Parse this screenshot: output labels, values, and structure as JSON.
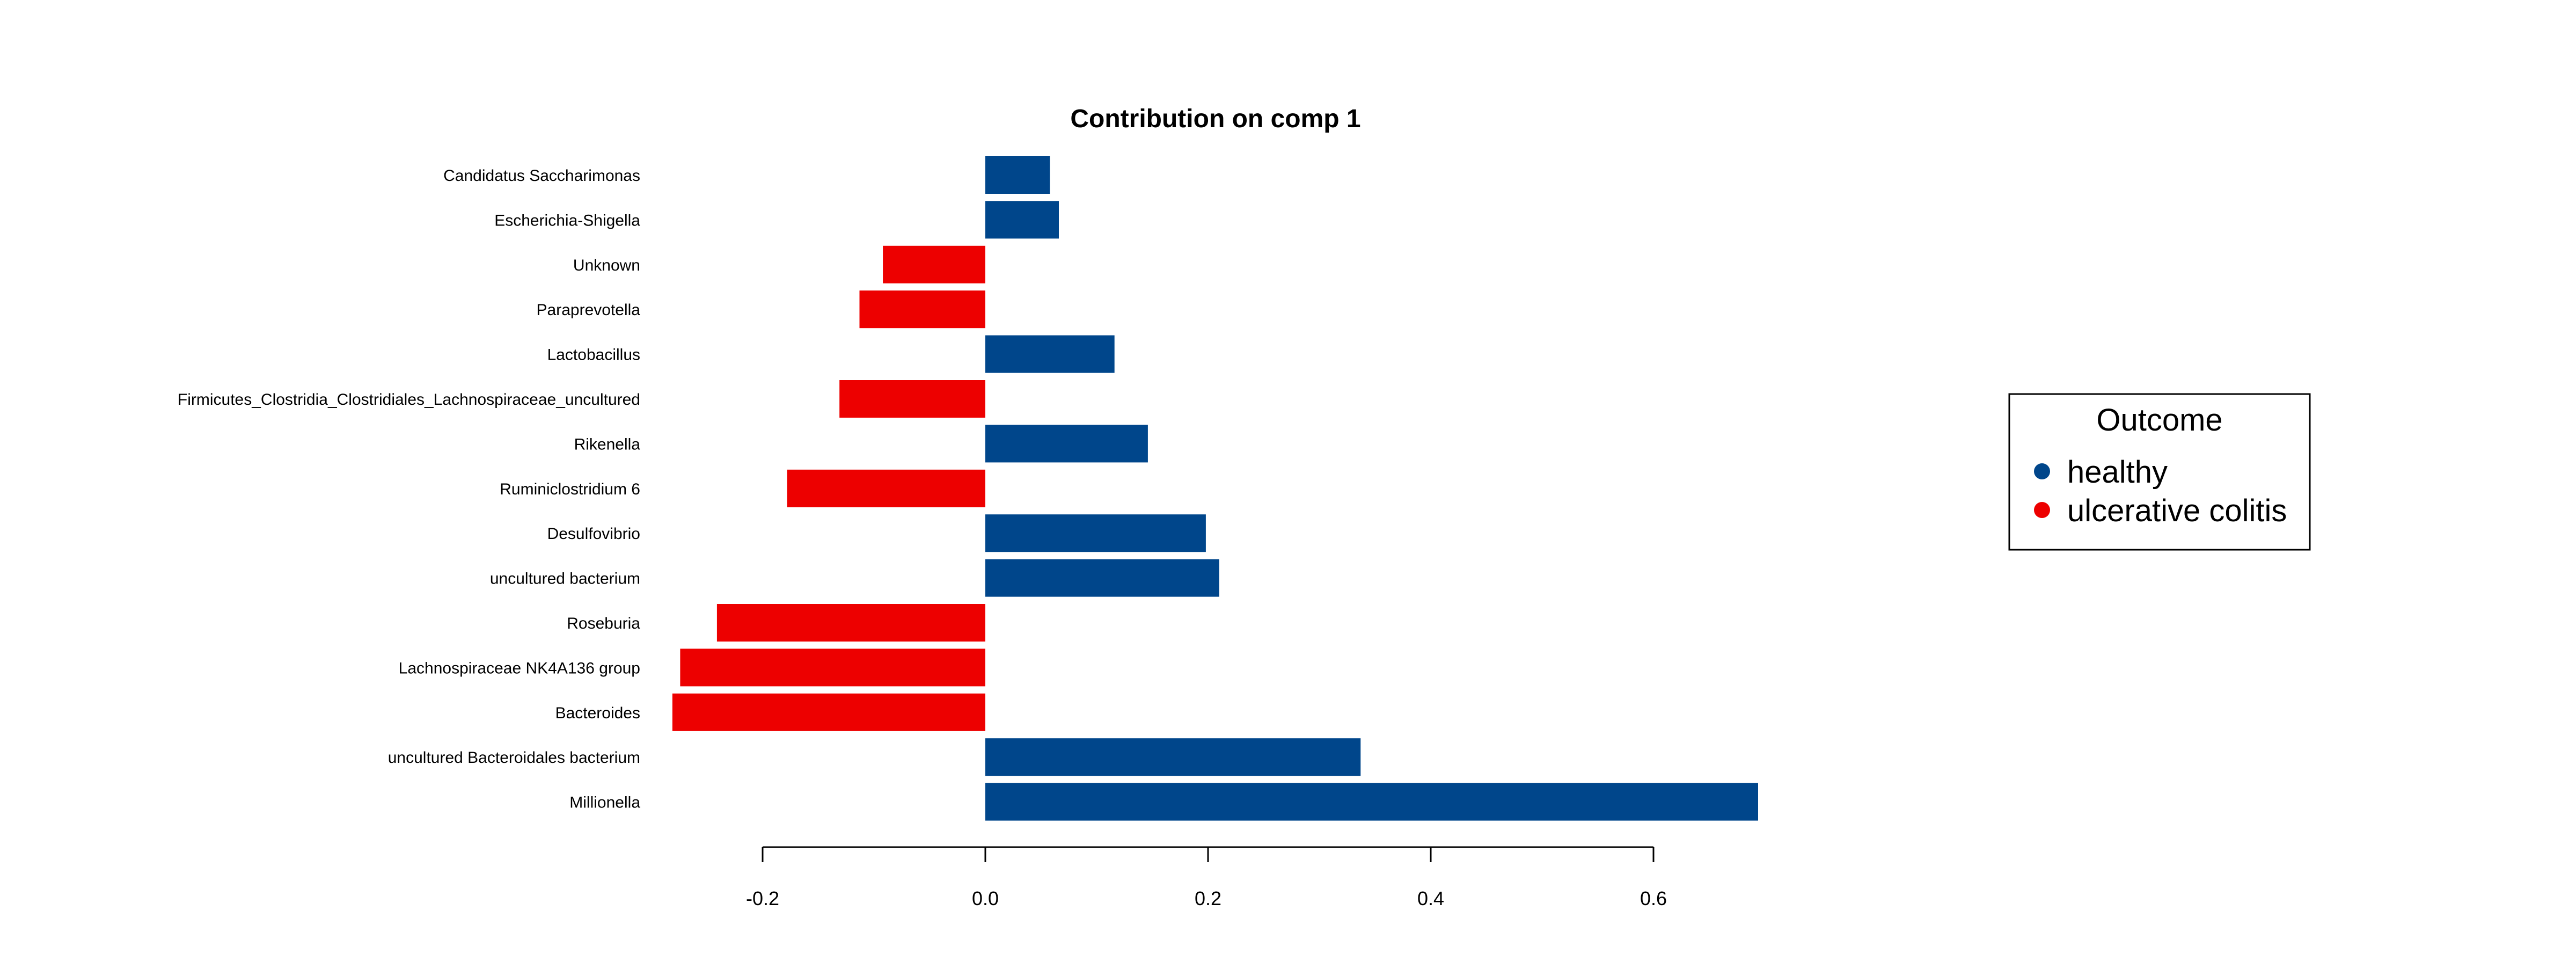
{
  "chart_data": {
    "type": "bar",
    "orientation": "horizontal",
    "title": "Contribution on comp 1",
    "xlabel": "",
    "ylabel": "",
    "categories": [
      "Candidatus Saccharimonas",
      "Escherichia-Shigella",
      "Unknown",
      "Paraprevotella",
      "Lactobacillus",
      "Firmicutes_Clostridia_Clostridiales_Lachnospiraceae_uncultured",
      "Rikenella",
      "Ruminiclostridium 6",
      "Desulfovibrio",
      "uncultured bacterium",
      "Roseburia",
      "Lachnospiraceae NK4A136 group",
      "Bacteroides",
      "uncultured Bacteroidales bacterium",
      "Millionella"
    ],
    "values": [
      0.058,
      0.066,
      -0.092,
      -0.113,
      0.116,
      -0.131,
      0.146,
      -0.178,
      0.198,
      0.21,
      -0.241,
      -0.274,
      -0.281,
      0.337,
      0.694
    ],
    "groups": [
      "healthy",
      "healthy",
      "ulcerative colitis",
      "ulcerative colitis",
      "healthy",
      "ulcerative colitis",
      "healthy",
      "ulcerative colitis",
      "healthy",
      "healthy",
      "ulcerative colitis",
      "ulcerative colitis",
      "ulcerative colitis",
      "healthy",
      "healthy"
    ],
    "xlim": [
      -0.2,
      0.6
    ],
    "x_ticks": [
      -0.2,
      0.0,
      0.2,
      0.4,
      0.6
    ],
    "x_tick_labels": [
      "-0.2",
      "0.0",
      "0.2",
      "0.4",
      "0.6"
    ],
    "grid": false,
    "legend": {
      "title": "Outcome",
      "placement": "right",
      "entries": [
        {
          "label": "healthy",
          "color": "#00468B"
        },
        {
          "label": "ulcerative colitis",
          "color": "#ED0000"
        }
      ]
    }
  }
}
